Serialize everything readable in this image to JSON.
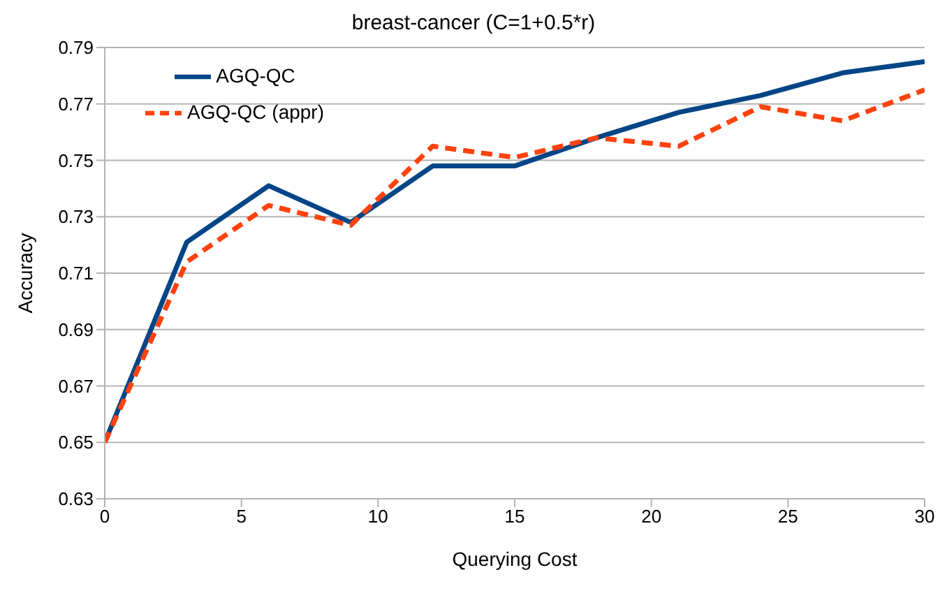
{
  "chart_data": {
    "type": "line",
    "title": "breast-cancer (C=1+0.5*r)",
    "xlabel": "Querying Cost",
    "ylabel": "Accuracy",
    "x": [
      0,
      3,
      6,
      9,
      12,
      15,
      18,
      21,
      24,
      27,
      30
    ],
    "series": [
      {
        "name": "AGQ-QC",
        "color": "#004586",
        "line_style": "solid",
        "values": [
          0.65,
          0.721,
          0.741,
          0.728,
          0.748,
          0.748,
          0.758,
          0.767,
          0.773,
          0.781,
          0.785
        ]
      },
      {
        "name": "AGQ-QC (appr)",
        "color": "#ff420e",
        "line_style": "dashed",
        "values": [
          0.65,
          0.714,
          0.734,
          0.727,
          0.755,
          0.751,
          0.758,
          0.755,
          0.769,
          0.764,
          0.775
        ]
      }
    ],
    "xlim": [
      0,
      30
    ],
    "xticks": [
      0,
      5,
      10,
      15,
      20,
      25,
      30
    ],
    "ylim": [
      0.63,
      0.79
    ],
    "yticks": [
      0.63,
      0.65,
      0.67,
      0.69,
      0.71,
      0.73,
      0.75,
      0.77,
      0.79
    ],
    "grid": "y",
    "legend": "top left",
    "marker": "none"
  }
}
